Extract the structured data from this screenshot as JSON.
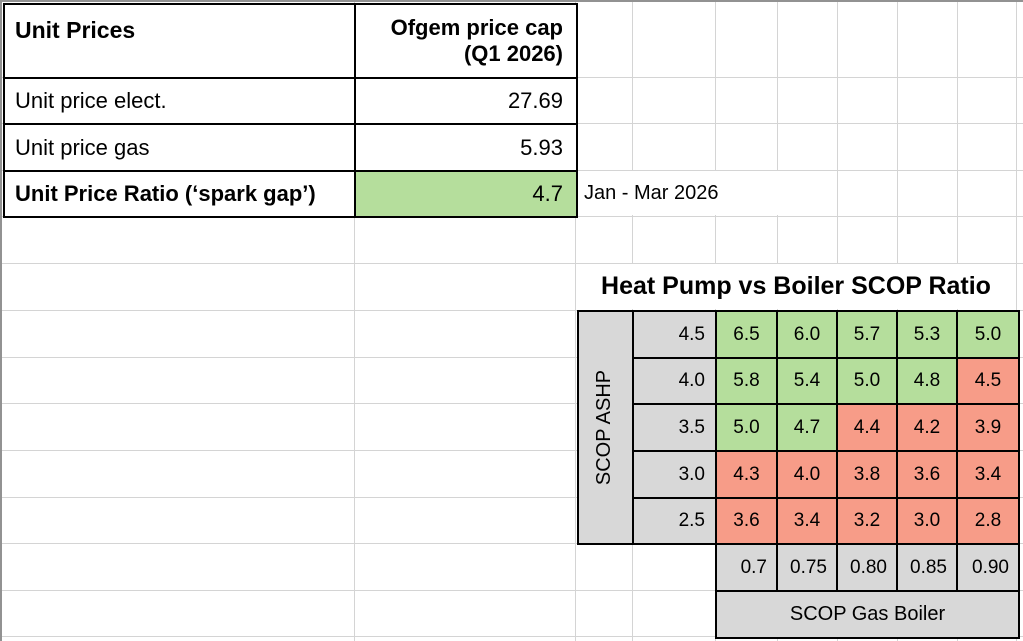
{
  "colors": {
    "green": "#b5de9c",
    "red": "#f79c88",
    "gray": "#d8d8d8"
  },
  "unit_prices": {
    "title": "Unit Prices",
    "value_header_line1": "Ofgem price cap",
    "value_header_line2": "(Q1 2026)",
    "rows": [
      {
        "label": "Unit price elect.",
        "value": "27.69"
      },
      {
        "label": "Unit price gas",
        "value": "5.93"
      },
      {
        "label": "Unit Price Ratio (‘spark gap’)",
        "value": "4.7"
      }
    ],
    "ratio_state": "green",
    "period_note": "Jan - Mar 2026"
  },
  "scop_matrix": {
    "title": "Heat Pump vs Boiler SCOP Ratio",
    "row_axis_label": "SCOP ASHP",
    "col_axis_label": "SCOP Gas Boiler",
    "row_headers": [
      "4.5",
      "4.0",
      "3.5",
      "3.0",
      "2.5"
    ],
    "col_headers": [
      "0.7",
      "0.75",
      "0.80",
      "0.85",
      "0.90"
    ],
    "cells": [
      [
        "6.5",
        "6.0",
        "5.7",
        "5.3",
        "5.0"
      ],
      [
        "5.8",
        "5.4",
        "5.0",
        "4.8",
        "4.5"
      ],
      [
        "5.0",
        "4.7",
        "4.4",
        "4.2",
        "3.9"
      ],
      [
        "4.3",
        "4.0",
        "3.8",
        "3.6",
        "3.4"
      ],
      [
        "3.6",
        "3.4",
        "3.2",
        "3.0",
        "2.8"
      ]
    ],
    "cell_states": [
      [
        "green",
        "green",
        "green",
        "green",
        "green"
      ],
      [
        "green",
        "green",
        "green",
        "green",
        "red"
      ],
      [
        "green",
        "green",
        "red",
        "red",
        "red"
      ],
      [
        "red",
        "red",
        "red",
        "red",
        "red"
      ],
      [
        "red",
        "red",
        "red",
        "red",
        "red"
      ]
    ]
  }
}
